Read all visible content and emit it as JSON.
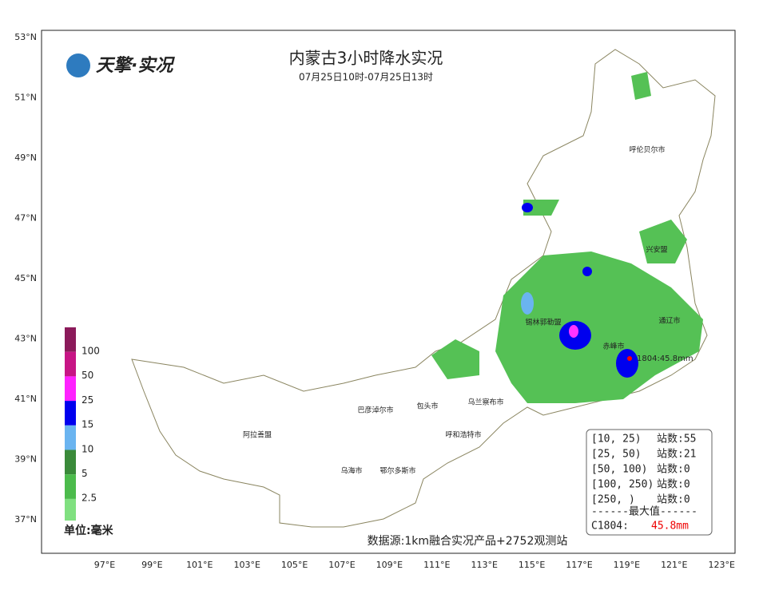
{
  "header": {
    "title": "内蒙古3小时降水实况",
    "subtitle": "07月25日10时-07月25日13时",
    "logo": "天擎·实况"
  },
  "lat_labels": [
    "53°N",
    "51°N",
    "49°N",
    "47°N",
    "45°N",
    "43°N",
    "41°N",
    "39°N",
    "37°N"
  ],
  "lon_labels": [
    "97°E",
    "99°E",
    "101°E",
    "103°E",
    "105°E",
    "107°E",
    "109°E",
    "111°E",
    "113°E",
    "115°E",
    "117°E",
    "119°E",
    "121°E",
    "123°E"
  ],
  "regions": [
    "呼伦贝尔市",
    "兴安盟",
    "锡林郭勒盟",
    "通辽市",
    "赤峰市",
    "乌兰察布市",
    "包头市",
    "巴彦淖尔市",
    "呼和浩特市",
    "阿拉善盟",
    "乌海市",
    "鄂尔多斯市"
  ],
  "annotation": "1804:45.8mm",
  "legend": {
    "levels": [
      "100",
      "50",
      "25",
      "15",
      "10",
      "5",
      "2.5"
    ],
    "unit": "单位:毫米"
  },
  "stats": {
    "rows": [
      [
        "[10, 25)",
        "站数:55"
      ],
      [
        "[25, 50)",
        "站数:21"
      ],
      [
        "[50, 100)",
        "站数:0"
      ],
      [
        "[100, 250)",
        "站数:0"
      ],
      [
        "[250, )",
        "站数:0"
      ]
    ],
    "max_header": "------最大值------",
    "max_station": "C1804:",
    "max_value": "45.8mm"
  },
  "source": "数据源:1km融合实况产品+2752观测站"
}
